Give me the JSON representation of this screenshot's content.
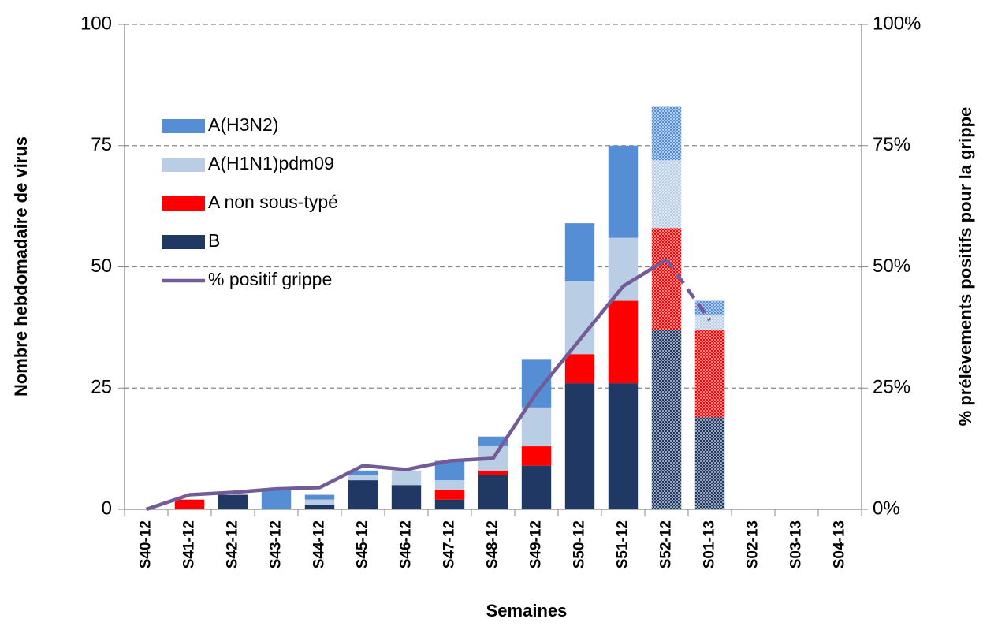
{
  "chart_data": {
    "type": "stacked-bar-line",
    "x_title": "Semaines",
    "y_title": "Nombre hebdomadaire de virus",
    "y2_title": "% prélèvements positifs  pour la grippe",
    "categories": [
      "S40-12",
      "S41-12",
      "S42-12",
      "S43-12",
      "S44-12",
      "S45-12",
      "S46-12",
      "S47-12",
      "S48-12",
      "S49-12",
      "S50-12",
      "S51-12",
      "S52-12",
      "S01-13",
      "S02-13",
      "S03-13",
      "S04-13"
    ],
    "series": [
      {
        "name": "B",
        "color": "#1f3864",
        "values": [
          0,
          0,
          3,
          0,
          1,
          6,
          5,
          2,
          7,
          9,
          26,
          26,
          37,
          19,
          0,
          0,
          0
        ]
      },
      {
        "name": "A non sous-typé",
        "color": "#ff0000",
        "values": [
          0,
          2,
          0,
          0,
          0,
          0,
          0,
          2,
          1,
          4,
          6,
          17,
          21,
          18,
          0,
          0,
          0
        ]
      },
      {
        "name": "A(H1N1)pdm09",
        "color": "#b9cde5",
        "values": [
          0,
          0,
          0,
          0,
          1,
          1,
          3,
          2,
          5,
          8,
          15,
          13,
          14,
          3,
          0,
          0,
          0
        ]
      },
      {
        "name": "A(H3N2)",
        "color": "#558ed5",
        "values": [
          0,
          0,
          0,
          4,
          1,
          1,
          0,
          4,
          2,
          10,
          12,
          19,
          11,
          3,
          0,
          0,
          0
        ]
      },
      {
        "name": "% positif grippe",
        "color": "#725b96",
        "axis": "y2",
        "type": "line",
        "values": [
          0,
          3,
          3.5,
          4.2,
          4.5,
          9,
          8.2,
          10,
          10.5,
          24,
          35,
          46,
          51.5,
          39,
          null,
          null,
          null
        ]
      }
    ],
    "provisional_start_index": 12,
    "ylim": [
      0,
      100
    ],
    "yticks": [
      0,
      25,
      50,
      75,
      100
    ],
    "y2lim": [
      0,
      100
    ],
    "y2ticks": [
      {
        "value": 0,
        "label": "0%"
      },
      {
        "value": 25,
        "label": "25%"
      },
      {
        "value": 50,
        "label": "50%"
      },
      {
        "value": 75,
        "label": "75%"
      },
      {
        "value": 100,
        "label": "100%"
      }
    ],
    "grid": true
  }
}
